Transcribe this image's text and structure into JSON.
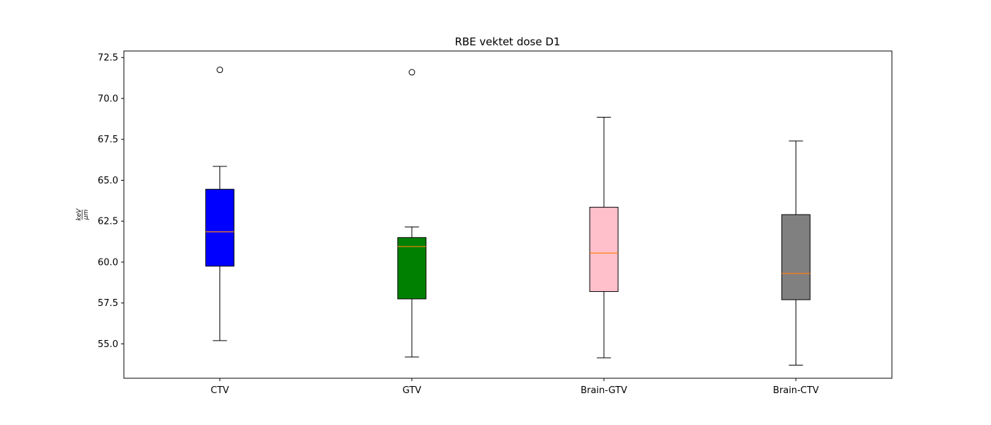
{
  "chart_data": {
    "type": "box",
    "title": "RBE vektet dose D1",
    "xlabel": "",
    "ylabel_numerator": "keV",
    "ylabel_denominator": "μm",
    "ylim": [
      52.9,
      72.9
    ],
    "yticks": [
      55.0,
      57.5,
      60.0,
      62.5,
      65.0,
      67.5,
      70.0,
      72.5
    ],
    "ytick_labels": [
      "55.0",
      "57.5",
      "60.0",
      "62.5",
      "65.0",
      "67.5",
      "70.0",
      "72.5"
    ],
    "categories": [
      "CTV",
      "GTV",
      "Brain-GTV",
      "Brain-CTV"
    ],
    "grid": false,
    "legend": "none",
    "median_color": "#ff7f0e",
    "boxes": [
      {
        "label": "CTV",
        "color": "#0000ff",
        "whisker_low": 55.2,
        "q1": 59.75,
        "median": 61.85,
        "q3": 64.45,
        "whisker_high": 65.85,
        "fliers": [
          71.75
        ]
      },
      {
        "label": "GTV",
        "color": "#008000",
        "whisker_low": 54.2,
        "q1": 57.75,
        "median": 60.95,
        "q3": 61.5,
        "whisker_high": 62.15,
        "fliers": [
          71.6
        ]
      },
      {
        "label": "Brain-GTV",
        "color": "#ffc0cb",
        "whisker_low": 54.15,
        "q1": 58.2,
        "median": 60.55,
        "q3": 63.35,
        "whisker_high": 68.85,
        "fliers": []
      },
      {
        "label": "Brain-CTV",
        "color": "#808080",
        "whisker_low": 53.7,
        "q1": 57.7,
        "median": 59.3,
        "q3": 62.9,
        "whisker_high": 67.4,
        "fliers": []
      }
    ]
  }
}
